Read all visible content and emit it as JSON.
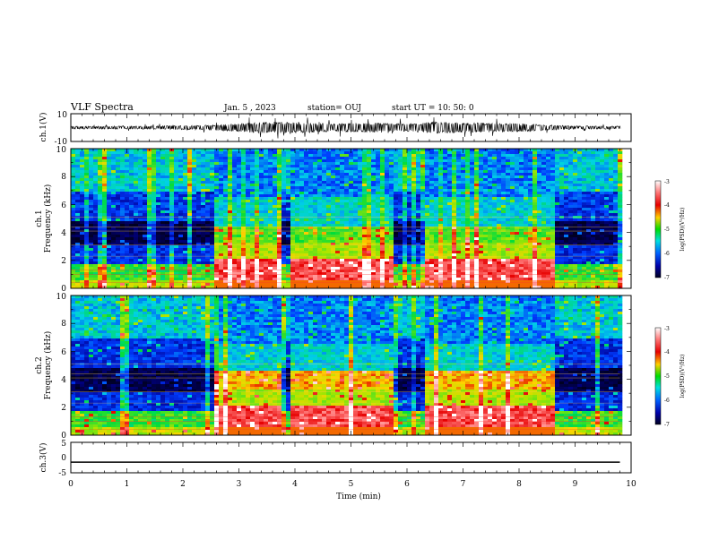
{
  "header": {
    "title": "VLF Spectra",
    "date": "Jan. 5 , 2023",
    "station": "station= OUJ",
    "start": "start UT =   10: 50: 0"
  },
  "chart_data": [
    {
      "type": "line",
      "name": "ch1-waveform",
      "ylabel": "ch.1(V)",
      "ylim": [
        -10,
        10
      ],
      "yticks": [
        "10",
        "-10"
      ],
      "x": [
        0,
        1.5,
        2.5,
        3.0,
        3.5,
        4.0,
        4.6,
        5.5,
        6.0,
        6.5,
        7.0,
        8.0,
        8.6,
        9.0,
        9.8
      ],
      "amplitude_envelope": [
        0.8,
        1.0,
        1.5,
        2.6,
        3.5,
        3.4,
        2.5,
        3.0,
        2.3,
        3.5,
        3.0,
        2.6,
        1.6,
        1.0,
        0.9
      ],
      "xlim": [
        0,
        10
      ]
    },
    {
      "type": "heatmap",
      "name": "ch1-spectrogram",
      "ylabel": "ch.1\nFrequency (kHz)",
      "xlim": [
        0,
        9.8
      ],
      "ylim": [
        0,
        10
      ],
      "yticks": [
        "0",
        "2",
        "4",
        "6",
        "8",
        "10"
      ],
      "colorbar": {
        "label": "log(PSD)(V²/Hz)",
        "ticks": [
          "-3",
          "-4",
          "-5",
          "-6",
          "-7"
        ],
        "range": [
          -7,
          -3
        ]
      },
      "segments": [
        {
          "t0": 0.0,
          "t1": 2.5,
          "level": "quiet"
        },
        {
          "t0": 2.5,
          "t1": 3.7,
          "level": "active"
        },
        {
          "t0": 3.7,
          "t1": 3.85,
          "level": "quiet"
        },
        {
          "t0": 3.85,
          "t1": 5.75,
          "level": "active"
        },
        {
          "t0": 5.75,
          "t1": 6.3,
          "level": "quiet"
        },
        {
          "t0": 6.3,
          "t1": 8.6,
          "level": "active"
        },
        {
          "t0": 8.6,
          "t1": 9.8,
          "level": "quiet"
        }
      ]
    },
    {
      "type": "heatmap",
      "name": "ch2-spectrogram",
      "ylabel": "ch.2\nFrequency (kHz)",
      "xlim": [
        0,
        9.8
      ],
      "ylim": [
        0,
        10
      ],
      "yticks": [
        "0",
        "2",
        "4",
        "6",
        "8",
        "10"
      ],
      "colorbar": {
        "label": "log(PSD)(V²/Hz)",
        "ticks": [
          "-3",
          "-4",
          "-5",
          "-6",
          "-7"
        ],
        "range": [
          -7,
          -3
        ]
      },
      "segments": [
        {
          "t0": 0.0,
          "t1": 2.5,
          "level": "quiet"
        },
        {
          "t0": 2.5,
          "t1": 3.7,
          "level": "active"
        },
        {
          "t0": 3.7,
          "t1": 3.85,
          "level": "quiet"
        },
        {
          "t0": 3.85,
          "t1": 5.75,
          "level": "active"
        },
        {
          "t0": 5.75,
          "t1": 6.3,
          "level": "quiet"
        },
        {
          "t0": 6.3,
          "t1": 8.6,
          "level": "active"
        },
        {
          "t0": 8.6,
          "t1": 9.8,
          "level": "quiet"
        }
      ]
    },
    {
      "type": "line",
      "name": "ch3-waveform",
      "ylabel": "ch.3(V)",
      "ylim": [
        -5,
        5
      ],
      "yticks": [
        "5",
        "0",
        "-5"
      ],
      "x": [
        0,
        9.8
      ],
      "y": [
        -1.5,
        -1.5
      ],
      "xlim": [
        0,
        10
      ],
      "xlabel": "Time  (min)",
      "xticks": [
        "0",
        "1",
        "2",
        "3",
        "4",
        "5",
        "6",
        "7",
        "8",
        "9",
        "10"
      ]
    }
  ]
}
